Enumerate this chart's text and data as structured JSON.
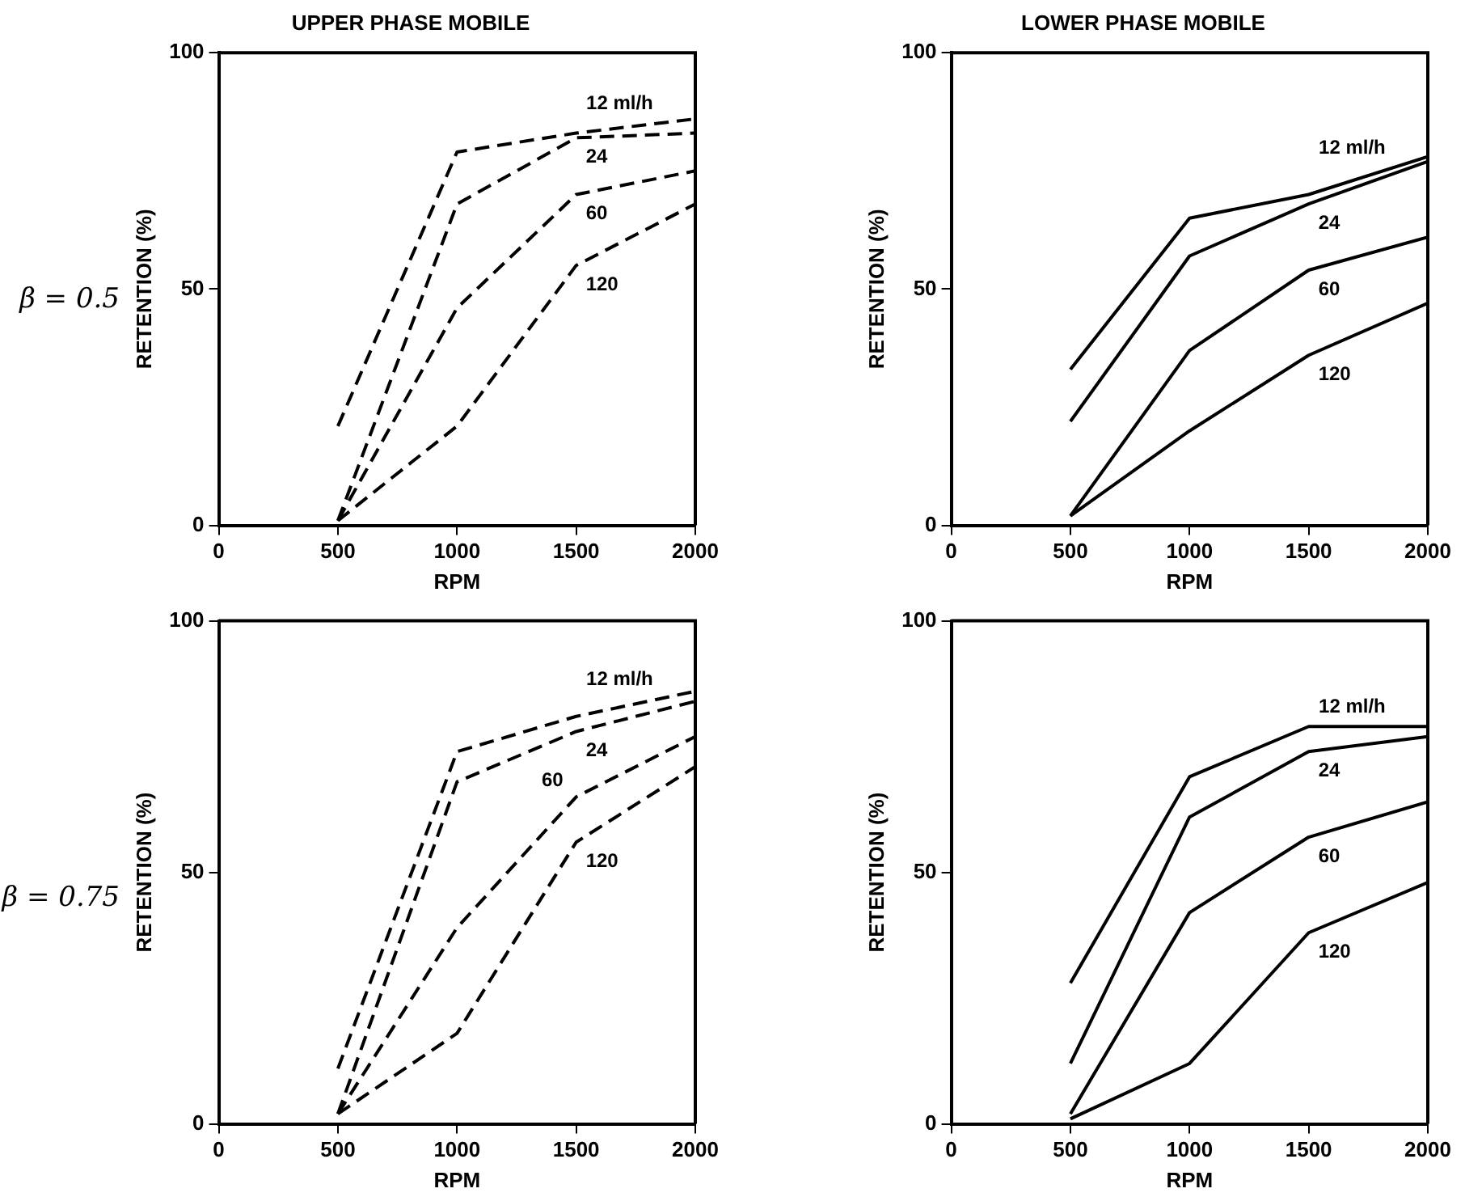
{
  "chart_data": [
    {
      "type": "line",
      "title": "UPPER PHASE MOBILE",
      "xlabel": "RPM",
      "ylabel": "RETENTION (%)",
      "annotations": [
        "β = 0.5"
      ],
      "x": [
        500,
        1000,
        1500,
        2000
      ],
      "xlim": [
        0,
        2000
      ],
      "xticks": [
        0,
        500,
        1000,
        1500,
        2000
      ],
      "ylim": [
        0,
        100
      ],
      "yticks": [
        0,
        50,
        100
      ],
      "grid": false,
      "legend": false,
      "marker": "none",
      "line_style": "dashed",
      "series": [
        {
          "name": "12 ml/h",
          "color": "#000000",
          "values": [
            21,
            79,
            83,
            86
          ]
        },
        {
          "name": "24",
          "color": "#000000",
          "values": [
            1,
            68,
            82,
            83
          ]
        },
        {
          "name": "60",
          "color": "#000000",
          "values": [
            1,
            46,
            70,
            75
          ]
        },
        {
          "name": "120",
          "color": "#000000",
          "values": [
            1,
            21,
            55,
            68
          ]
        }
      ]
    },
    {
      "type": "line",
      "title": "LOWER PHASE MOBILE",
      "xlabel": "RPM",
      "ylabel": "RETENTION (%)",
      "x": [
        500,
        1000,
        1500,
        2000
      ],
      "xlim": [
        0,
        2000
      ],
      "xticks": [
        0,
        500,
        1000,
        1500,
        2000
      ],
      "ylim": [
        0,
        100
      ],
      "yticks": [
        0,
        50,
        100
      ],
      "grid": false,
      "legend": false,
      "marker": "none",
      "line_style": "solid",
      "series": [
        {
          "name": "12 ml/h",
          "color": "#000000",
          "values": [
            33,
            65,
            70,
            78
          ]
        },
        {
          "name": "24",
          "color": "#000000",
          "values": [
            22,
            57,
            68,
            77
          ]
        },
        {
          "name": "60",
          "color": "#000000",
          "values": [
            2,
            37,
            54,
            61
          ]
        },
        {
          "name": "120",
          "color": "#000000",
          "values": [
            2,
            20,
            36,
            47
          ]
        }
      ]
    },
    {
      "type": "line",
      "xlabel": "RPM",
      "ylabel": "RETENTION (%)",
      "annotations": [
        "β = 0.75"
      ],
      "x": [
        500,
        1000,
        1500,
        2000
      ],
      "xlim": [
        0,
        2000
      ],
      "xticks": [
        0,
        500,
        1000,
        1500,
        2000
      ],
      "ylim": [
        0,
        100
      ],
      "yticks": [
        0,
        50,
        100
      ],
      "grid": false,
      "legend": false,
      "marker": "none",
      "line_style": "dashed",
      "series": [
        {
          "name": "12 ml/h",
          "color": "#000000",
          "values": [
            11,
            74,
            81,
            86
          ]
        },
        {
          "name": "24",
          "color": "#000000",
          "values": [
            2,
            68,
            78,
            84
          ]
        },
        {
          "name": "60",
          "color": "#000000",
          "values": [
            2,
            39,
            65,
            77
          ]
        },
        {
          "name": "120",
          "color": "#000000",
          "values": [
            2,
            18,
            56,
            71
          ]
        }
      ]
    },
    {
      "type": "line",
      "xlabel": "RPM",
      "ylabel": "RETENTION (%)",
      "x": [
        500,
        1000,
        1500,
        2000
      ],
      "xlim": [
        0,
        2000
      ],
      "xticks": [
        0,
        500,
        1000,
        1500,
        2000
      ],
      "ylim": [
        0,
        100
      ],
      "yticks": [
        0,
        50,
        100
      ],
      "grid": false,
      "legend": false,
      "marker": "none",
      "line_style": "solid",
      "series": [
        {
          "name": "12 ml/h",
          "color": "#000000",
          "values": [
            28,
            69,
            79,
            79
          ]
        },
        {
          "name": "24",
          "color": "#000000",
          "values": [
            12,
            61,
            74,
            77
          ]
        },
        {
          "name": "60",
          "color": "#000000",
          "values": [
            2,
            42,
            57,
            64
          ]
        },
        {
          "name": "120",
          "color": "#000000",
          "values": [
            1,
            12,
            38,
            48
          ]
        }
      ]
    }
  ]
}
